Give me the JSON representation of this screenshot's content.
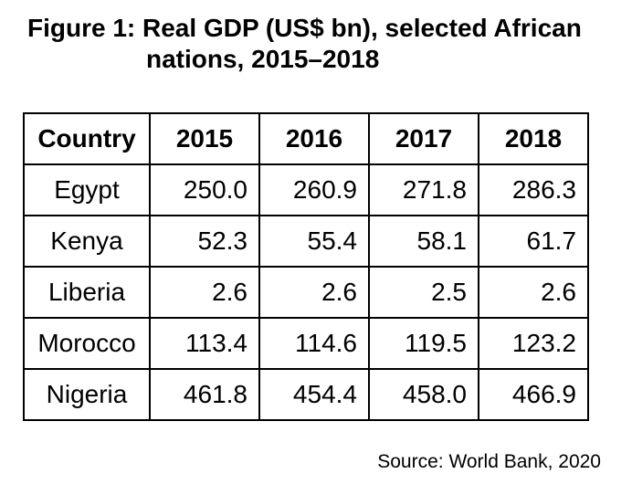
{
  "figure": {
    "title_line1": "Figure 1: Real GDP (US$ bn), selected African",
    "title_line2": "nations, 2015–2018"
  },
  "table": {
    "headers": [
      "Country",
      "2015",
      "2016",
      "2017",
      "2018"
    ],
    "rows": [
      [
        "Egypt",
        "250.0",
        "260.9",
        "271.8",
        "286.3"
      ],
      [
        "Kenya",
        "52.3",
        "55.4",
        "58.1",
        "61.7"
      ],
      [
        "Liberia",
        "2.6",
        "2.6",
        "2.5",
        "2.6"
      ],
      [
        "Morocco",
        "113.4",
        "114.6",
        "119.5",
        "123.2"
      ],
      [
        "Nigeria",
        "461.8",
        "454.4",
        "458.0",
        "466.9"
      ]
    ]
  },
  "source": "Source: World Bank, 2020"
}
